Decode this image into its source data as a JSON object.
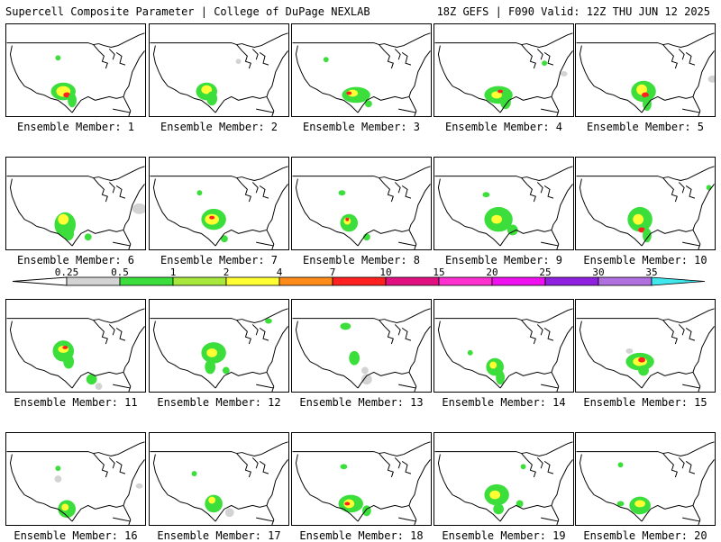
{
  "header": {
    "title": "Supercell Composite Parameter | College of DuPage NEXLAB",
    "run_info": "18Z GEFS | F090 Valid: 12Z THU JUN 12 2025"
  },
  "colorbar": {
    "labels": [
      "0.25",
      "0.5",
      "1",
      "2",
      "4",
      "7",
      "10",
      "15",
      "20",
      "25",
      "30",
      "35"
    ],
    "colors": [
      "#d3d3d3",
      "#3cde3c",
      "#a8e83c",
      "#ffff33",
      "#ff8c1a",
      "#ff2020",
      "#e01080",
      "#ff30d0",
      "#ee10ee",
      "#9020e0",
      "#b070e0",
      "#40e8ee"
    ]
  },
  "members": [
    {
      "label": "Ensemble Member: 1"
    },
    {
      "label": "Ensemble Member: 2"
    },
    {
      "label": "Ensemble Member: 3"
    },
    {
      "label": "Ensemble Member: 4"
    },
    {
      "label": "Ensemble Member: 5"
    },
    {
      "label": "Ensemble Member: 6"
    },
    {
      "label": "Ensemble Member: 7"
    },
    {
      "label": "Ensemble Member: 8"
    },
    {
      "label": "Ensemble Member: 9"
    },
    {
      "label": "Ensemble Member: 10"
    },
    {
      "label": "Ensemble Member: 11"
    },
    {
      "label": "Ensemble Member: 12"
    },
    {
      "label": "Ensemble Member: 13"
    },
    {
      "label": "Ensemble Member: 14"
    },
    {
      "label": "Ensemble Member: 15"
    },
    {
      "label": "Ensemble Member: 16"
    },
    {
      "label": "Ensemble Member: 17"
    },
    {
      "label": "Ensemble Member: 18"
    },
    {
      "label": "Ensemble Member: 19"
    },
    {
      "label": "Ensemble Member: 20"
    }
  ]
}
